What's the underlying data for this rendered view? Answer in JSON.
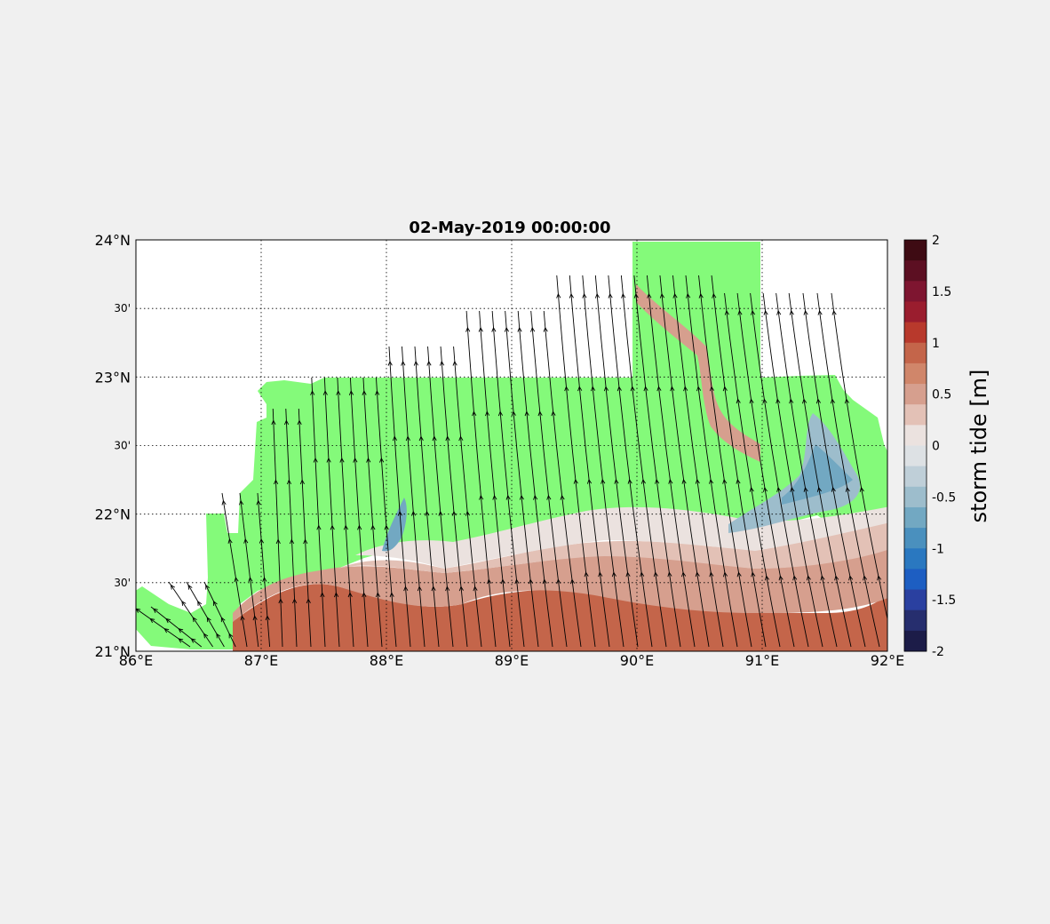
{
  "title": "02-May-2019 00:00:00",
  "map": {
    "lon_range": [
      86,
      92
    ],
    "lat_range": [
      21,
      24
    ],
    "x_ticks": [
      "86°E",
      "87°E",
      "88°E",
      "89°E",
      "90°E",
      "91°E",
      "92°E"
    ],
    "y_ticks": [
      "21°N",
      "22°N",
      "23°N",
      "24°N"
    ],
    "y_minor_ticks": [
      "30'",
      "30'",
      "30'"
    ],
    "gridlines": true,
    "land_color": "#84fa7a",
    "vector_field": "wind",
    "arrow_color": "#000000"
  },
  "colorbar": {
    "label": "storm tide [m]",
    "tick_labels": [
      "2",
      "1.5",
      "1",
      "0.5",
      "0",
      "-0.5",
      "-1",
      "-1.5",
      "-2"
    ],
    "range": [
      -2,
      2
    ],
    "colors": [
      "#3e0b13",
      "#5c0f22",
      "#7e1530",
      "#9a1d2e",
      "#b8392c",
      "#c4654a",
      "#d0866a",
      "#d69f8e",
      "#e3c1b6",
      "#ebe2df",
      "#dde1e4",
      "#bfcfd8",
      "#9dbdcc",
      "#72a8c2",
      "#4a90be",
      "#2a78c0",
      "#1d5ec2",
      "#2a40a0",
      "#262e6e",
      "#1c1c48"
    ]
  }
}
